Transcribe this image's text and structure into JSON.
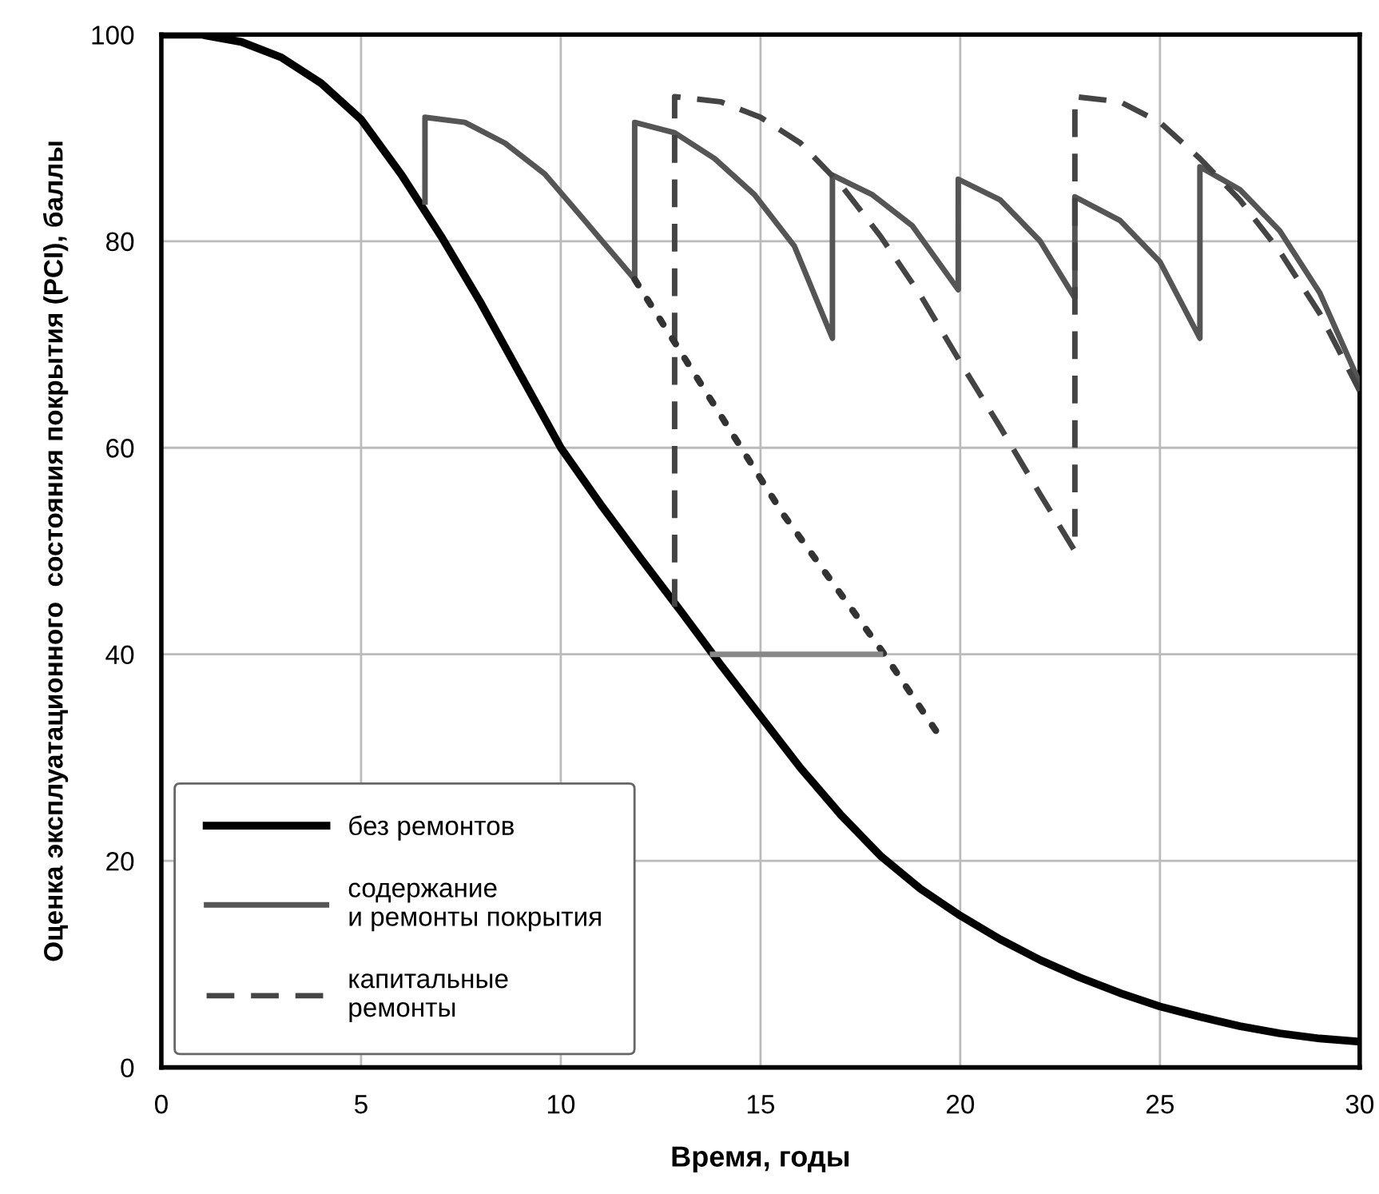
{
  "chart_data": {
    "type": "line",
    "xlabel": "Время, годы",
    "ylabel": "Оценка эксплуатационного  состояния покрытия (PCI), баллы",
    "xlim": [
      0,
      30
    ],
    "xticks": [
      0,
      5,
      10,
      15,
      20,
      25,
      30
    ],
    "ylim": [
      0,
      100
    ],
    "yticks": [
      0,
      20,
      40,
      60,
      80,
      100
    ],
    "grid": true,
    "legend": "bottom left",
    "marker": "none",
    "series": [
      {
        "name": "без ремонтов",
        "color": "#000000",
        "line_style": "solid",
        "x": [
          0,
          1,
          2,
          3,
          4,
          5,
          6,
          7,
          8,
          9,
          10,
          11,
          12,
          13,
          14,
          15,
          16,
          17,
          18,
          19,
          20,
          21,
          22,
          23,
          24,
          25,
          26,
          27,
          28,
          29,
          30
        ],
        "values": [
          100,
          100,
          99.3,
          97.8,
          95.3,
          91.8,
          86.5,
          80.5,
          74,
          67,
          60,
          54.5,
          49.3,
          44.2,
          39,
          34,
          29,
          24.5,
          20.5,
          17.3,
          14.7,
          12.4,
          10.4,
          8.7,
          7.2,
          5.9,
          4.9,
          4,
          3.3,
          2.8,
          2.5
        ]
      },
      {
        "name": "содержание\nи ремонты покрытия",
        "color": "#555555",
        "line_style": "solid",
        "x": [
          6.6,
          6.6,
          7.6,
          8.6,
          9.6,
          10.6,
          11.85,
          11.85,
          12.85,
          13.85,
          14.85,
          15.85,
          16.8,
          16.8,
          17.8,
          18.8,
          19.95,
          19.95,
          21,
          22,
          22.87,
          22.87,
          24,
          25,
          26,
          26,
          27,
          28,
          29,
          30
        ],
        "values": [
          83.8,
          92,
          91.5,
          89.5,
          86.5,
          82,
          76.3,
          91.5,
          90.5,
          88,
          84.5,
          79.5,
          70.6,
          86.4,
          84.5,
          81.5,
          75.3,
          86,
          84,
          80,
          74.5,
          84.3,
          82,
          78,
          70.6,
          87.2,
          85,
          81,
          75,
          66.3
        ]
      },
      {
        "name": "капитальные\nремонты",
        "color": "#444444",
        "line_style": "dashed",
        "x": [
          12.85,
          12.85,
          14,
          15,
          16,
          17,
          18,
          19,
          20,
          21,
          22,
          22.87,
          22.87,
          24,
          25,
          26,
          27,
          28,
          29,
          30
        ],
        "values": [
          44.6,
          94,
          93.5,
          92,
          89.5,
          85.5,
          80.5,
          74.8,
          68.3,
          62,
          55.5,
          50,
          94,
          93.5,
          91.5,
          88,
          84,
          79,
          73,
          65.5
        ]
      },
      {
        "color": "#333333",
        "line_style": "dotted",
        "x": [
          11.85,
          12.9,
          15.56,
          18.1,
          19.6
        ],
        "values": [
          76.3,
          69.9,
          53.6,
          40,
          31.4
        ]
      },
      {
        "color": "#888888",
        "line_style": "solid",
        "x": [
          13.8,
          18.0
        ],
        "values": [
          40,
          40
        ]
      }
    ]
  }
}
